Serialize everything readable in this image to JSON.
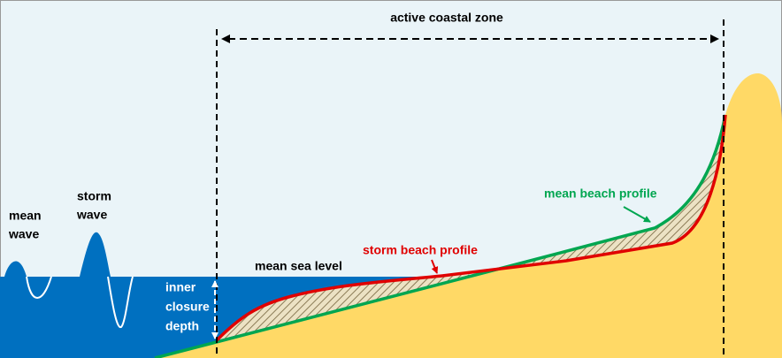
{
  "title": "active coastal zone",
  "mean_wave": [
    "mean",
    "wave"
  ],
  "storm_wave": [
    "storm",
    "wave"
  ],
  "mean_sea_level": "mean sea level",
  "inner_closure_depth": [
    "inner",
    "closure",
    "depth"
  ],
  "storm_beach_profile": "storm beach profile",
  "mean_beach_profile": "mean beach profile"
}
